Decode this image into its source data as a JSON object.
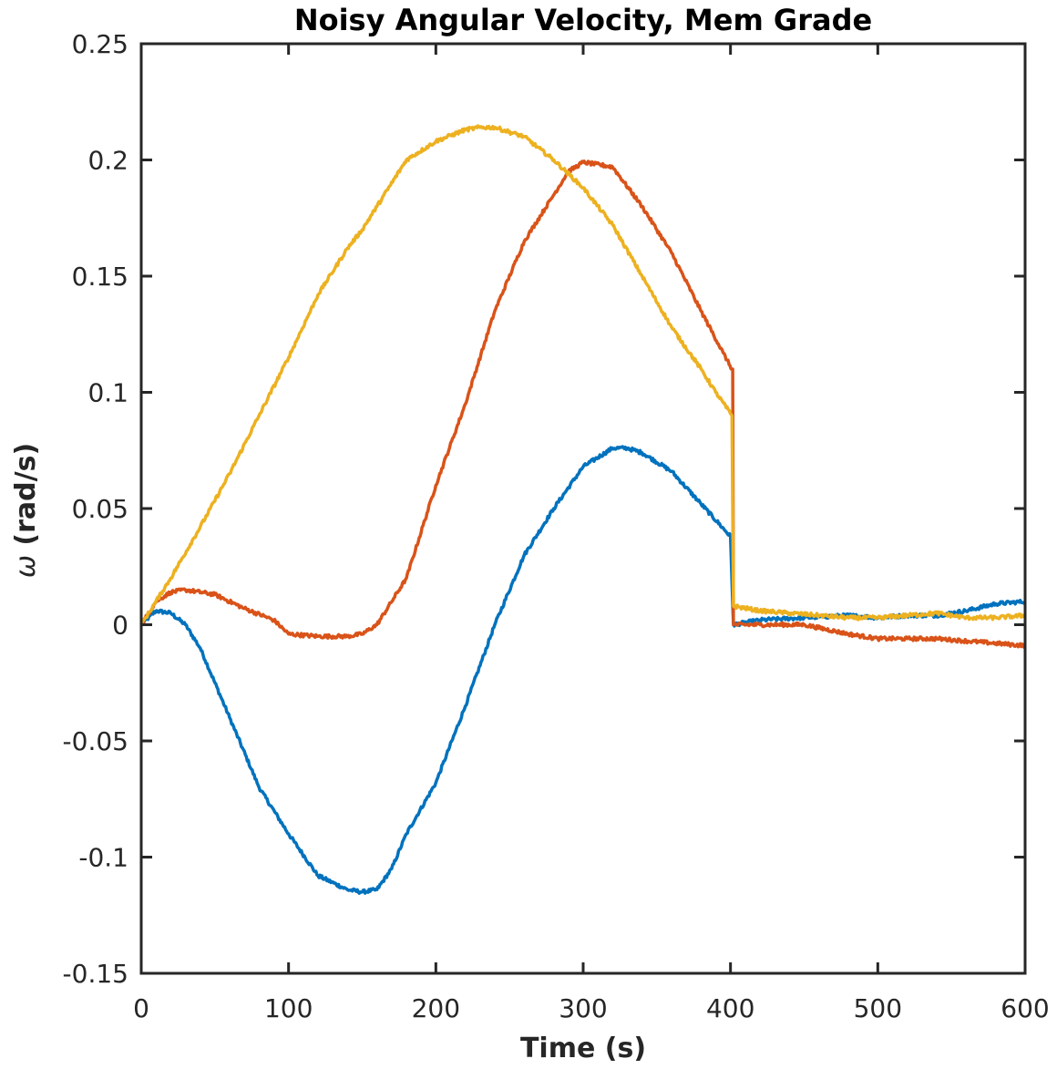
{
  "chart_data": {
    "type": "line",
    "title": "Noisy Angular Velocity, Mem Grade",
    "xlabel": "Time (s)",
    "ylabel_symbol": "ω",
    "ylabel": "(rad/s)",
    "xlim": [
      0,
      600
    ],
    "ylim": [
      -0.15,
      0.25
    ],
    "xticks": [
      0,
      100,
      200,
      300,
      400,
      500,
      600
    ],
    "xtick_labels": [
      "0",
      "100",
      "200",
      "300",
      "400",
      "500",
      "600"
    ],
    "yticks": [
      -0.15,
      -0.1,
      -0.05,
      0,
      0.05,
      0.1,
      0.15,
      0.2,
      0.25
    ],
    "ytick_labels": [
      "-0.15",
      "-0.1",
      "-0.05",
      "0",
      "0.05",
      "0.1",
      "0.15",
      "0.2",
      "0.25"
    ],
    "grid": false,
    "box": true,
    "series": [
      {
        "color": "#0072BD",
        "x": [
          0,
          10,
          20,
          30,
          40,
          60,
          80,
          100,
          120,
          140,
          150,
          160,
          170,
          180,
          200,
          220,
          240,
          260,
          280,
          300,
          320,
          330,
          340,
          360,
          380,
          400,
          402,
          420,
          450,
          480,
          500,
          520,
          540,
          560,
          580,
          600
        ],
        "y": [
          0.0,
          0.006,
          0.005,
          0.0,
          -0.01,
          -0.04,
          -0.07,
          -0.09,
          -0.108,
          -0.114,
          -0.115,
          -0.114,
          -0.105,
          -0.09,
          -0.068,
          -0.035,
          0.0,
          0.03,
          0.05,
          0.068,
          0.076,
          0.076,
          0.074,
          0.066,
          0.052,
          0.038,
          0.0,
          0.002,
          0.003,
          0.004,
          0.003,
          0.004,
          0.004,
          0.006,
          0.009,
          0.01
        ]
      },
      {
        "color": "#D95319",
        "x": [
          0,
          10,
          20,
          30,
          50,
          70,
          90,
          100,
          120,
          140,
          150,
          160,
          180,
          200,
          220,
          240,
          260,
          280,
          290,
          300,
          320,
          340,
          360,
          380,
          395,
          401,
          401.5,
          402,
          420,
          450,
          480,
          500,
          520,
          540,
          560,
          580,
          600
        ],
        "y": [
          0.0,
          0.01,
          0.014,
          0.015,
          0.013,
          0.007,
          0.002,
          -0.004,
          -0.005,
          -0.005,
          -0.004,
          0.0,
          0.02,
          0.06,
          0.095,
          0.135,
          0.165,
          0.185,
          0.195,
          0.199,
          0.197,
          0.18,
          0.16,
          0.135,
          0.117,
          0.11,
          0.11,
          0.0,
          0.0,
          0.0,
          -0.004,
          -0.006,
          -0.006,
          -0.006,
          -0.007,
          -0.008,
          -0.009
        ]
      },
      {
        "color": "#EDB120",
        "x": [
          0,
          10,
          20,
          40,
          60,
          80,
          100,
          120,
          140,
          150,
          160,
          180,
          200,
          220,
          230,
          240,
          260,
          280,
          300,
          320,
          340,
          360,
          380,
          390,
          401,
          402,
          420,
          440,
          460,
          480,
          500,
          520,
          540,
          560,
          580,
          600
        ],
        "y": [
          0.0,
          0.01,
          0.02,
          0.042,
          0.065,
          0.09,
          0.115,
          0.142,
          0.162,
          0.17,
          0.18,
          0.2,
          0.208,
          0.213,
          0.214,
          0.214,
          0.21,
          0.2,
          0.188,
          0.172,
          0.15,
          0.128,
          0.11,
          0.1,
          0.09,
          0.008,
          0.006,
          0.005,
          0.004,
          0.003,
          0.003,
          0.004,
          0.005,
          0.003,
          0.003,
          0.004
        ]
      }
    ]
  }
}
